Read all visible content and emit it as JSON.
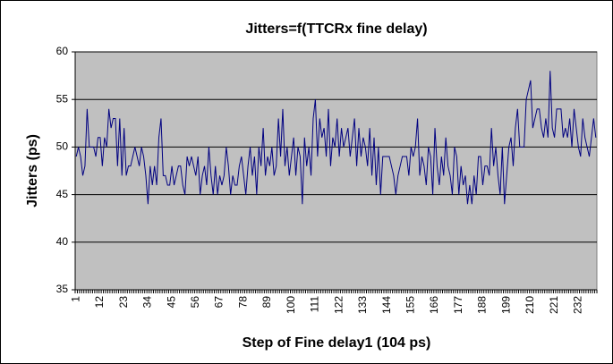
{
  "chart_data": {
    "type": "line",
    "title": "Jitters=f(TTCRx fine delay)",
    "x_label": "Step of Fine delay1 (104 ps)",
    "y_label": "Jitters (ps)",
    "categories": [
      1,
      null,
      null,
      null,
      null,
      null,
      null,
      null,
      null,
      null,
      null,
      12,
      null,
      null,
      null,
      null,
      null,
      null,
      null,
      null,
      null,
      null,
      23,
      null,
      null,
      null,
      null,
      null,
      null,
      null,
      null,
      null,
      null,
      34,
      null,
      null,
      null,
      null,
      null,
      null,
      null,
      null,
      null,
      null,
      45,
      null,
      null,
      null,
      null,
      null,
      null,
      null,
      null,
      null,
      null,
      56,
      null,
      null,
      null,
      null,
      null,
      null,
      null,
      null,
      null,
      null,
      67,
      null,
      null,
      null,
      null,
      null,
      null,
      null,
      null,
      null,
      null,
      78,
      null,
      null,
      null,
      null,
      null,
      null,
      null,
      null,
      null,
      null,
      89,
      null,
      null,
      null,
      null,
      null,
      null,
      null,
      null,
      null,
      null,
      100,
      null,
      null,
      null,
      null,
      null,
      null,
      null,
      null,
      null,
      null,
      111,
      null,
      null,
      null,
      null,
      null,
      null,
      null,
      null,
      null,
      null,
      122,
      null,
      null,
      null,
      null,
      null,
      null,
      null,
      null,
      null,
      null,
      133,
      null,
      null,
      null,
      null,
      null,
      null,
      null,
      null,
      null,
      null,
      144,
      null,
      null,
      null,
      null,
      null,
      null,
      null,
      null,
      null,
      null,
      155,
      null,
      null,
      null,
      null,
      null,
      null,
      null,
      null,
      null,
      null,
      166,
      null,
      null,
      null,
      null,
      null,
      null,
      null,
      null,
      null,
      null,
      177,
      null,
      null,
      null,
      null,
      null,
      null,
      null,
      null,
      null,
      null,
      188,
      null,
      null,
      null,
      null,
      null,
      null,
      null,
      null,
      null,
      null,
      199,
      null,
      null,
      null,
      null,
      null,
      null,
      null,
      null,
      null,
      null,
      210,
      null,
      null,
      null,
      null,
      null,
      null,
      null,
      null,
      null,
      null,
      221,
      null,
      null,
      null,
      null,
      null,
      null,
      null,
      null,
      null,
      null,
      232,
      null,
      null,
      null,
      null,
      null,
      null,
      null,
      null
    ],
    "series": [
      {
        "name": "Jitters",
        "color": "#000080",
        "values": [
          49,
          50,
          49,
          47,
          48,
          54,
          50,
          50,
          50,
          49,
          51,
          51,
          48,
          51,
          50,
          54,
          52,
          53,
          53,
          48,
          53,
          47,
          52,
          47,
          48,
          48,
          49,
          50,
          49,
          48,
          50,
          49,
          47,
          44,
          48,
          46,
          48,
          46,
          51,
          53,
          47,
          47,
          46,
          46,
          48,
          46,
          47,
          48,
          48,
          46,
          45,
          49,
          48,
          49,
          48,
          47,
          49,
          45,
          47,
          48,
          46,
          50,
          47,
          45,
          48,
          45,
          47,
          46,
          47,
          50,
          48,
          45,
          47,
          46,
          46,
          48,
          49,
          47,
          45,
          48,
          50,
          47,
          49,
          45,
          50,
          48,
          52,
          47,
          49,
          48,
          50,
          47,
          48,
          53,
          49,
          54,
          48,
          50,
          47,
          49,
          51,
          47,
          50,
          49,
          44,
          51,
          48,
          50,
          47,
          53,
          55,
          49,
          53,
          51,
          52,
          49,
          54,
          48,
          51,
          50,
          53,
          49,
          52,
          50,
          51,
          52,
          49,
          51,
          53,
          48,
          52,
          49,
          51,
          50,
          48,
          52,
          47,
          51,
          46,
          50,
          45,
          49,
          49,
          49,
          49,
          48,
          47,
          45,
          47,
          48,
          49,
          49,
          49,
          47,
          50,
          49,
          50,
          53,
          47,
          49,
          48,
          46,
          50,
          49,
          45,
          52,
          48,
          46,
          49,
          47,
          51,
          48,
          47,
          45,
          50,
          49,
          45,
          48,
          46,
          47,
          44,
          46,
          44,
          47,
          45,
          49,
          49,
          46,
          48,
          48,
          47,
          52,
          48,
          50,
          47,
          45,
          50,
          44,
          47,
          50,
          51,
          48,
          52,
          54,
          50,
          50,
          50,
          55,
          56,
          57,
          52,
          53,
          54,
          54,
          52,
          51,
          53,
          51,
          58,
          52,
          51,
          54,
          54,
          54,
          51,
          52,
          51,
          53,
          50,
          54,
          52,
          50,
          49,
          53,
          51,
          50,
          49,
          51,
          53,
          51
        ]
      }
    ],
    "ylim": [
      35,
      60
    ],
    "yticks": [
      35,
      40,
      45,
      50,
      55,
      60
    ],
    "grid": true,
    "plot_background": "#c0c0c0"
  }
}
